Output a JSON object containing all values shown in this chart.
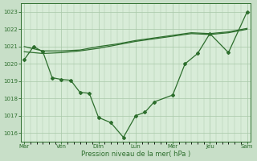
{
  "background_color": "#c8dfc8",
  "plot_bg_color": "#d8ecd8",
  "grid_color": "#a8c8a8",
  "line_color": "#2d6e2d",
  "x_labels": [
    "Mar",
    "Ven",
    "Dim",
    "Lun",
    "Mer",
    "Jeu",
    "Sam"
  ],
  "xlabel": "Pression niveau de la mer( hPa )",
  "ylim": [
    1015.5,
    1023.5
  ],
  "yticks": [
    1016,
    1017,
    1018,
    1019,
    1020,
    1021,
    1022,
    1023
  ],
  "line_marker_x": [
    0.0,
    0.25,
    0.5,
    0.75,
    1.0,
    1.25,
    1.5,
    1.75,
    2.0,
    2.33,
    2.67,
    3.0,
    3.25,
    3.5,
    4.0,
    4.33,
    4.67,
    5.0,
    5.5,
    6.0
  ],
  "line_marker_y": [
    1020.25,
    1021.0,
    1020.7,
    1019.2,
    1019.1,
    1019.05,
    1018.35,
    1018.3,
    1016.9,
    1016.6,
    1015.75,
    1017.0,
    1017.2,
    1017.8,
    1018.2,
    1020.0,
    1020.6,
    1021.75,
    1020.65,
    1023.0
  ],
  "line_smooth1_x": [
    0.0,
    0.5,
    1.0,
    1.5,
    2.0,
    2.5,
    3.0,
    3.5,
    4.0,
    4.5,
    5.0,
    5.5,
    6.0
  ],
  "line_smooth1_y": [
    1021.0,
    1020.75,
    1020.75,
    1020.8,
    1021.0,
    1021.15,
    1021.35,
    1021.5,
    1021.65,
    1021.8,
    1021.75,
    1021.85,
    1022.05
  ],
  "line_smooth2_x": [
    0.0,
    0.5,
    1.0,
    1.5,
    2.0,
    2.5,
    3.0,
    3.5,
    4.0,
    4.5,
    5.0,
    5.5,
    6.0
  ],
  "line_smooth2_y": [
    1020.7,
    1020.6,
    1020.65,
    1020.75,
    1020.9,
    1021.1,
    1021.3,
    1021.45,
    1021.6,
    1021.75,
    1021.7,
    1021.8,
    1022.0
  ]
}
